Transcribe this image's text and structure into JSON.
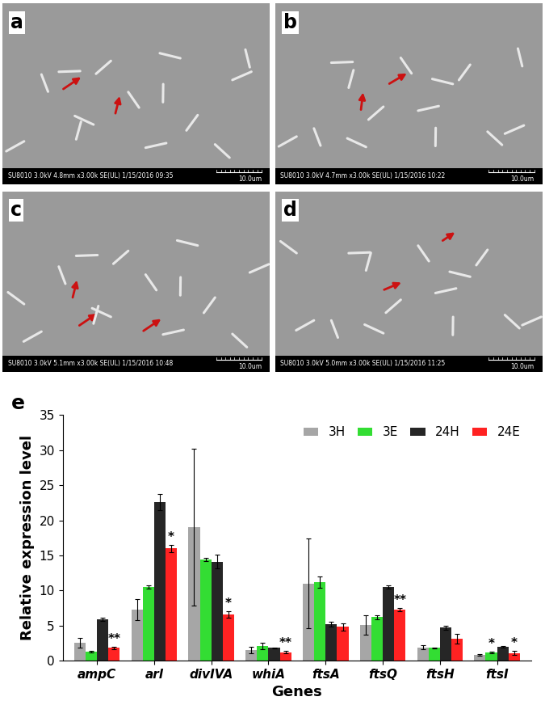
{
  "panels": [
    {
      "label": "a",
      "info": "SU8010 3.0kV 4.8mm x3.00k SE(UL) 1/15/2016 09:35",
      "scale": "10.0um"
    },
    {
      "label": "b",
      "info": "SU8010 3.0kV 4.7mm x3.00k SE(UL) 1/15/2016 10:22",
      "scale": "10.0um"
    },
    {
      "label": "c",
      "info": "SU8010 3.0kV 5.1mm x3.00k SE(UL) 1/15/2016 10:48",
      "scale": "10.0um"
    },
    {
      "label": "d",
      "info": "SU8010 3.0kV 5.0mm x3.00k SE(UL) 1/15/2016 11:25",
      "scale": "10.0um"
    }
  ],
  "chart_data": {
    "type": "bar",
    "panel_label": "e",
    "x_label": "Genes",
    "y_label": "Relative expression level",
    "categories": [
      "ampC",
      "arl",
      "divIVA",
      "whiA",
      "ftsA",
      "ftsQ",
      "ftsH",
      "ftsI"
    ],
    "series": [
      {
        "name": "3H",
        "color": "#a6a6a6",
        "values": [
          2.5,
          7.3,
          19.0,
          1.5,
          11.0,
          5.1,
          1.9,
          0.8
        ],
        "errors": [
          0.7,
          1.5,
          11.2,
          0.5,
          6.4,
          1.4,
          0.3,
          0.1
        ]
      },
      {
        "name": "3E",
        "color": "#33dd33",
        "values": [
          1.3,
          10.5,
          14.4,
          2.1,
          11.2,
          6.2,
          1.8,
          1.2
        ],
        "errors": [
          0.1,
          0.2,
          0.2,
          0.5,
          0.8,
          0.3,
          0.1,
          0.1
        ]
      },
      {
        "name": "24H",
        "color": "#262626",
        "values": [
          5.9,
          22.6,
          14.1,
          1.8,
          5.2,
          10.5,
          4.7,
          2.0
        ],
        "errors": [
          0.2,
          1.2,
          1.0,
          0.1,
          0.3,
          0.2,
          0.3,
          0.1
        ]
      },
      {
        "name": "24E",
        "color": "#ff2222",
        "values": [
          1.8,
          16.0,
          6.6,
          1.2,
          4.8,
          7.3,
          3.1,
          1.1
        ],
        "errors": [
          0.15,
          0.5,
          0.5,
          0.2,
          0.5,
          0.2,
          0.7,
          0.3
        ]
      }
    ],
    "annotations": [
      {
        "category": "ampC",
        "series": "24E",
        "text": "**"
      },
      {
        "category": "arl",
        "series": "24E",
        "text": "*"
      },
      {
        "category": "divIVA",
        "series": "24E",
        "text": "*"
      },
      {
        "category": "whiA",
        "series": "24E",
        "text": "**"
      },
      {
        "category": "ftsQ",
        "series": "24E",
        "text": "**"
      },
      {
        "category": "ftsI",
        "series": "3E",
        "text": "*"
      },
      {
        "category": "ftsI",
        "series": "24E",
        "text": "*"
      }
    ],
    "ylim": [
      0,
      35
    ],
    "yticks": [
      0,
      5,
      10,
      15,
      20,
      25,
      30,
      35
    ],
    "legend": "upper right"
  }
}
